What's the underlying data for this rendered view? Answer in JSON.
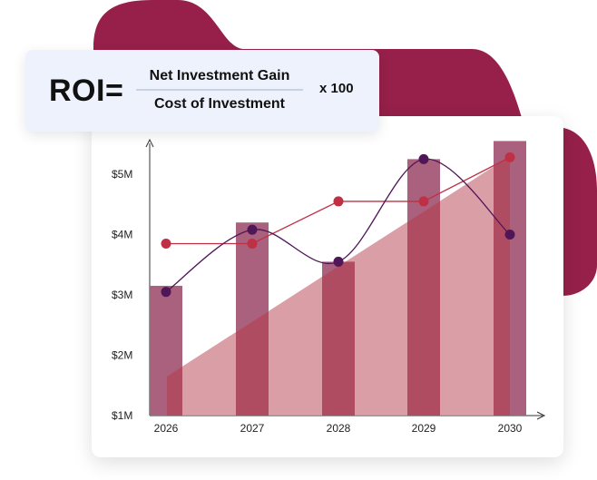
{
  "formula": {
    "label": "ROI=",
    "numerator": "Net Investment Gain",
    "denominator": "Cost of Investment",
    "multiplier": "x 100"
  },
  "colors": {
    "blob": "#962049",
    "bar": "#a9617d",
    "area": "#d48e96",
    "overlap": "#b04c62",
    "line_red": "#bf3045",
    "line_purple": "#4f1658"
  },
  "chart_data": {
    "type": "bar",
    "categories": [
      "2026",
      "2027",
      "2028",
      "2029",
      "2030"
    ],
    "y_tick_labels": [
      "$1M",
      "$2M",
      "$3M",
      "$4M",
      "$5M"
    ],
    "y_tick_values": [
      1,
      2,
      3,
      4,
      5
    ],
    "ylim": [
      1,
      6
    ],
    "values": [
      3.15,
      4.2,
      3.55,
      5.25,
      5.55
    ],
    "area_series": {
      "start": 1.65,
      "end": 5.3
    },
    "series": [
      {
        "type": "line",
        "color_key": "line_red",
        "values": [
          3.85,
          3.85,
          4.55,
          4.55,
          5.28
        ]
      },
      {
        "type": "line",
        "curve": "smooth",
        "color_key": "line_purple",
        "values": [
          3.05,
          4.08,
          3.55,
          5.25,
          4.0
        ]
      }
    ]
  }
}
